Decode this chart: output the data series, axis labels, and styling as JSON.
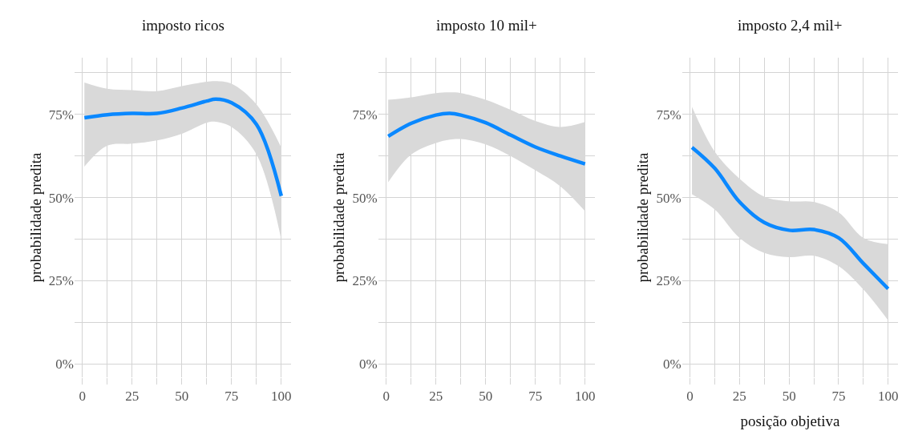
{
  "chart_data": [
    {
      "type": "line",
      "title": "imposto ricos",
      "ylabel": "probabilidade predita",
      "x": [
        1,
        12.5,
        25,
        37.5,
        50,
        62.5,
        67,
        75,
        87.5,
        100
      ],
      "series": [
        {
          "color": "#0a88ff",
          "values": [
            74,
            74.9,
            75.3,
            75.3,
            76.9,
            79.0,
            79.6,
            78.5,
            72,
            50.5
          ],
          "lower": [
            59.3,
            65.6,
            66.2,
            67.2,
            69.2,
            72.5,
            72.8,
            71.2,
            63,
            37.3
          ],
          "upper": [
            84.6,
            82.7,
            82.3,
            82,
            83.5,
            84.8,
            85,
            84.2,
            78,
            65
          ]
        }
      ],
      "xlim": [
        -4,
        105
      ],
      "ylim": [
        -4,
        92
      ],
      "xticks": [
        0,
        {
          "value": 12.5,
          "label": null
        },
        25,
        {
          "value": 37.5,
          "label": null
        },
        50,
        {
          "value": 62.5,
          "label": null
        },
        75,
        {
          "value": 87.5,
          "label": null
        },
        100
      ],
      "yticks": [
        {
          "value": 0,
          "label": "0%"
        },
        {
          "value": 12.5,
          "label": null
        },
        {
          "value": 25,
          "label": "25%"
        },
        {
          "value": 37.5,
          "label": null
        },
        {
          "value": 50,
          "label": "50%"
        },
        {
          "value": 62.5,
          "label": null
        },
        {
          "value": 75,
          "label": "75%"
        },
        {
          "value": 87.5,
          "label": null
        }
      ],
      "grid": true,
      "line_style": "solid",
      "marker": "none"
    },
    {
      "type": "line",
      "title": "imposto 10 mil+",
      "ylabel": "probabilidade predita",
      "x": [
        1,
        12.5,
        25,
        32,
        37.5,
        50,
        62.5,
        75,
        87.5,
        100
      ],
      "series": [
        {
          "color": "#0a88ff",
          "values": [
            68.4,
            72.3,
            74.8,
            75.3,
            74.8,
            72.5,
            68.8,
            65.2,
            62.5,
            60.1
          ],
          "lower": [
            54.6,
            62.9,
            66.4,
            67.4,
            67.6,
            66,
            62.5,
            58.2,
            53.4,
            45.9
          ],
          "upper": [
            79.4,
            80.1,
            81.4,
            81.6,
            81.4,
            79.4,
            76.4,
            73,
            71.2,
            72.7
          ]
        }
      ],
      "xlim": [
        -4,
        105
      ],
      "ylim": [
        -4,
        92
      ],
      "xticks": [
        0,
        {
          "value": 12.5,
          "label": null
        },
        25,
        {
          "value": 37.5,
          "label": null
        },
        50,
        {
          "value": 62.5,
          "label": null
        },
        75,
        {
          "value": 87.5,
          "label": null
        },
        100
      ],
      "yticks": [
        {
          "value": 0,
          "label": "0%"
        },
        {
          "value": 12.5,
          "label": null
        },
        {
          "value": 25,
          "label": "25%"
        },
        {
          "value": 37.5,
          "label": null
        },
        {
          "value": 50,
          "label": "50%"
        },
        {
          "value": 62.5,
          "label": null
        },
        {
          "value": 75,
          "label": "75%"
        },
        {
          "value": 87.5,
          "label": null
        }
      ],
      "grid": true,
      "line_style": "solid",
      "marker": "none"
    },
    {
      "type": "line",
      "title": "imposto 2,4 mil+",
      "ylabel": "probabilidade predita",
      "xlabel": "posição objetiva",
      "x": [
        1,
        12.5,
        25,
        37.5,
        50,
        62.5,
        75,
        87.5,
        100
      ],
      "series": [
        {
          "color": "#0a88ff",
          "values": [
            65.1,
            58.8,
            48.7,
            42.5,
            40.2,
            40.4,
            37.9,
            30.2,
            22.6
          ],
          "lower": [
            51,
            46.4,
            37.9,
            33.4,
            32.1,
            32.5,
            29.4,
            22.4,
            13.1
          ],
          "upper": [
            77.3,
            63.8,
            55.7,
            50.3,
            48.9,
            48.7,
            45.6,
            37.9,
            36
          ]
        }
      ],
      "xlim": [
        -4,
        105
      ],
      "ylim": [
        -4,
        92
      ],
      "xticks": [
        0,
        {
          "value": 12.5,
          "label": null
        },
        25,
        {
          "value": 37.5,
          "label": null
        },
        50,
        {
          "value": 62.5,
          "label": null
        },
        75,
        {
          "value": 87.5,
          "label": null
        },
        100
      ],
      "yticks": [
        {
          "value": 0,
          "label": "0%"
        },
        {
          "value": 12.5,
          "label": null
        },
        {
          "value": 25,
          "label": "25%"
        },
        {
          "value": 37.5,
          "label": null
        },
        {
          "value": 50,
          "label": "50%"
        },
        {
          "value": 62.5,
          "label": null
        },
        {
          "value": 75,
          "label": "75%"
        },
        {
          "value": 87.5,
          "label": null
        }
      ],
      "grid": true,
      "line_style": "solid",
      "marker": "none"
    }
  ]
}
